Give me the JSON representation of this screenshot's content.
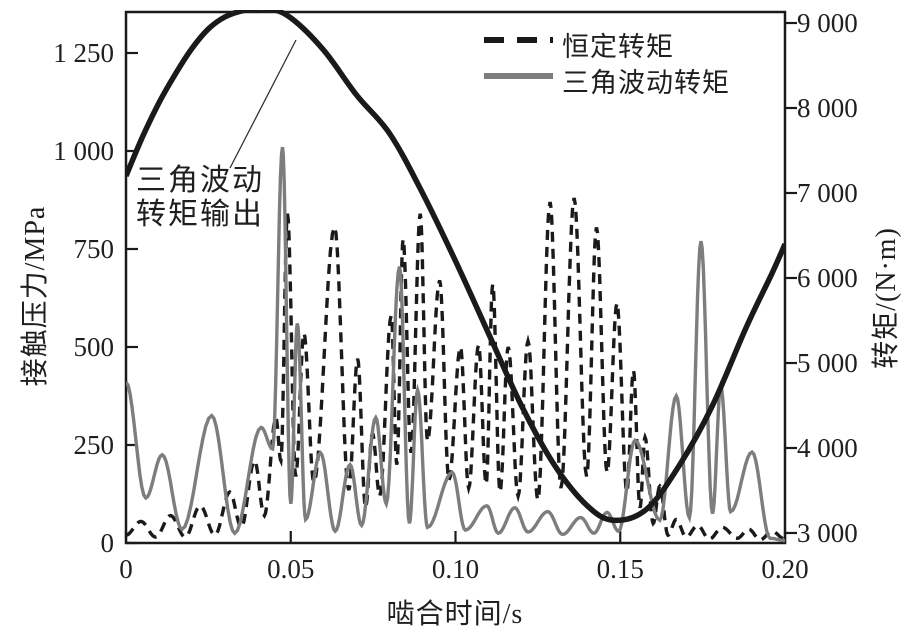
{
  "figure": {
    "background": "#ffffff",
    "frame_color": "#1a1a1a",
    "text_color": "#1f1f1f"
  },
  "chart_data": {
    "type": "line",
    "title": "",
    "xlabel": "啮合时间/s",
    "ylabel_left": "接触压力/MPa",
    "ylabel_right": "转矩/(N·m)",
    "x_range": [
      0,
      0.2
    ],
    "x_ticks": [
      "0",
      "0.05",
      "0.10",
      "0.15",
      "0.20"
    ],
    "y_left_range": [
      0,
      1355
    ],
    "y_left_ticks": [
      "0",
      "250",
      "500",
      "750",
      "1 000",
      "1 250"
    ],
    "y_right_range": [
      3000,
      9130
    ],
    "y_right_ticks": [
      "3 000",
      "4 000",
      "5 000",
      "6 000",
      "7 000",
      "8 000",
      "9 000"
    ],
    "grid": false,
    "legend_position": "top-right-inside",
    "annotation": {
      "line1": "三角波动",
      "line2": "转矩输出",
      "points_to": "triangular-torque-output-curve"
    },
    "series": [
      {
        "name": "恒定转矩",
        "role": "contact pressure under constant torque",
        "axis": "left",
        "unit": "MPa",
        "style": "dashed",
        "color": "#1a1a1a",
        "points": [
          [
            0,
            20
          ],
          [
            0.0045,
            55
          ],
          [
            0.009,
            15
          ],
          [
            0.0135,
            70
          ],
          [
            0.018,
            15
          ],
          [
            0.0225,
            95
          ],
          [
            0.027,
            20
          ],
          [
            0.0315,
            130
          ],
          [
            0.035,
            40
          ],
          [
            0.039,
            210
          ],
          [
            0.042,
            70
          ],
          [
            0.0455,
            320
          ],
          [
            0.047,
            210
          ],
          [
            0.049,
            840
          ],
          [
            0.0515,
            170
          ],
          [
            0.054,
            535
          ],
          [
            0.057,
            155
          ],
          [
            0.0633,
            806
          ],
          [
            0.0676,
            135
          ],
          [
            0.0703,
            470
          ],
          [
            0.0727,
            90
          ],
          [
            0.0748,
            280
          ],
          [
            0.077,
            120
          ],
          [
            0.0805,
            580
          ],
          [
            0.0822,
            200
          ],
          [
            0.0841,
            775
          ],
          [
            0.0865,
            230
          ],
          [
            0.0893,
            840
          ],
          [
            0.0915,
            260
          ],
          [
            0.0952,
            670
          ],
          [
            0.098,
            160
          ],
          [
            0.1015,
            500
          ],
          [
            0.104,
            140
          ],
          [
            0.107,
            505
          ],
          [
            0.1093,
            150
          ],
          [
            0.1113,
            660
          ],
          [
            0.1135,
            130
          ],
          [
            0.116,
            500
          ],
          [
            0.119,
            120
          ],
          [
            0.122,
            515
          ],
          [
            0.125,
            110
          ],
          [
            0.1287,
            870
          ],
          [
            0.132,
            140
          ],
          [
            0.136,
            880
          ],
          [
            0.1398,
            170
          ],
          [
            0.1428,
            805
          ],
          [
            0.146,
            180
          ],
          [
            0.149,
            612
          ],
          [
            0.152,
            130
          ],
          [
            0.154,
            440
          ],
          [
            0.156,
            90
          ],
          [
            0.1575,
            270
          ],
          [
            0.16,
            50
          ],
          [
            0.162,
            145
          ],
          [
            0.1645,
            20
          ],
          [
            0.167,
            60
          ],
          [
            0.17,
            15
          ],
          [
            0.1735,
            45
          ],
          [
            0.177,
            10
          ],
          [
            0.181,
            40
          ],
          [
            0.1855,
            12
          ],
          [
            0.189,
            35
          ],
          [
            0.1925,
            8
          ],
          [
            0.196,
            30
          ],
          [
            0.2,
            10
          ]
        ]
      },
      {
        "name": "三角波动转矩",
        "role": "contact pressure under triangular fluctuating torque",
        "axis": "left",
        "unit": "MPa",
        "style": "solid",
        "color": "#7d7d7d",
        "points": [
          [
            0,
            410
          ],
          [
            0.006,
            115
          ],
          [
            0.011,
            225
          ],
          [
            0.017,
            35
          ],
          [
            0.026,
            325
          ],
          [
            0.033,
            25
          ],
          [
            0.041,
            295
          ],
          [
            0.0445,
            240
          ],
          [
            0.0475,
            1010
          ],
          [
            0.05,
            100
          ],
          [
            0.052,
            560
          ],
          [
            0.0545,
            60
          ],
          [
            0.059,
            230
          ],
          [
            0.0635,
            30
          ],
          [
            0.068,
            200
          ],
          [
            0.0715,
            45
          ],
          [
            0.0758,
            320
          ],
          [
            0.079,
            100
          ],
          [
            0.083,
            705
          ],
          [
            0.086,
            50
          ],
          [
            0.0885,
            390
          ],
          [
            0.0915,
            40
          ],
          [
            0.099,
            180
          ],
          [
            0.103,
            33
          ],
          [
            0.1095,
            95
          ],
          [
            0.113,
            25
          ],
          [
            0.118,
            90
          ],
          [
            0.122,
            28
          ],
          [
            0.128,
            80
          ],
          [
            0.1325,
            22
          ],
          [
            0.138,
            65
          ],
          [
            0.142,
            25
          ],
          [
            0.146,
            78
          ],
          [
            0.1495,
            30
          ],
          [
            0.1545,
            262
          ],
          [
            0.162,
            58
          ],
          [
            0.167,
            375
          ],
          [
            0.171,
            65
          ],
          [
            0.1745,
            770
          ],
          [
            0.178,
            75
          ],
          [
            0.1805,
            400
          ],
          [
            0.1835,
            80
          ],
          [
            0.19,
            232
          ],
          [
            0.1955,
            12
          ],
          [
            0.2,
            6
          ]
        ]
      },
      {
        "name": "三角波动转矩输出",
        "role": "triangular fluctuating torque output",
        "axis": "right",
        "unit": "N·m",
        "style": "solid-thick",
        "color": "#1a1a1a",
        "points": [
          [
            0,
            7200
          ],
          [
            0.005,
            7660
          ],
          [
            0.01,
            8060
          ],
          [
            0.015,
            8400
          ],
          [
            0.02,
            8700
          ],
          [
            0.025,
            8930
          ],
          [
            0.03,
            9070
          ],
          [
            0.036,
            9150
          ],
          [
            0.043,
            9170
          ],
          [
            0.05,
            9060
          ],
          [
            0.06,
            8680
          ],
          [
            0.07,
            8150
          ],
          [
            0.08,
            7700
          ],
          [
            0.09,
            7000
          ],
          [
            0.1,
            6200
          ],
          [
            0.11,
            5350
          ],
          [
            0.12,
            4500
          ],
          [
            0.13,
            3800
          ],
          [
            0.14,
            3320
          ],
          [
            0.148,
            3150
          ],
          [
            0.158,
            3280
          ],
          [
            0.168,
            3800
          ],
          [
            0.178,
            4500
          ],
          [
            0.188,
            5400
          ],
          [
            0.196,
            6050
          ],
          [
            0.2,
            6400
          ]
        ]
      }
    ]
  }
}
